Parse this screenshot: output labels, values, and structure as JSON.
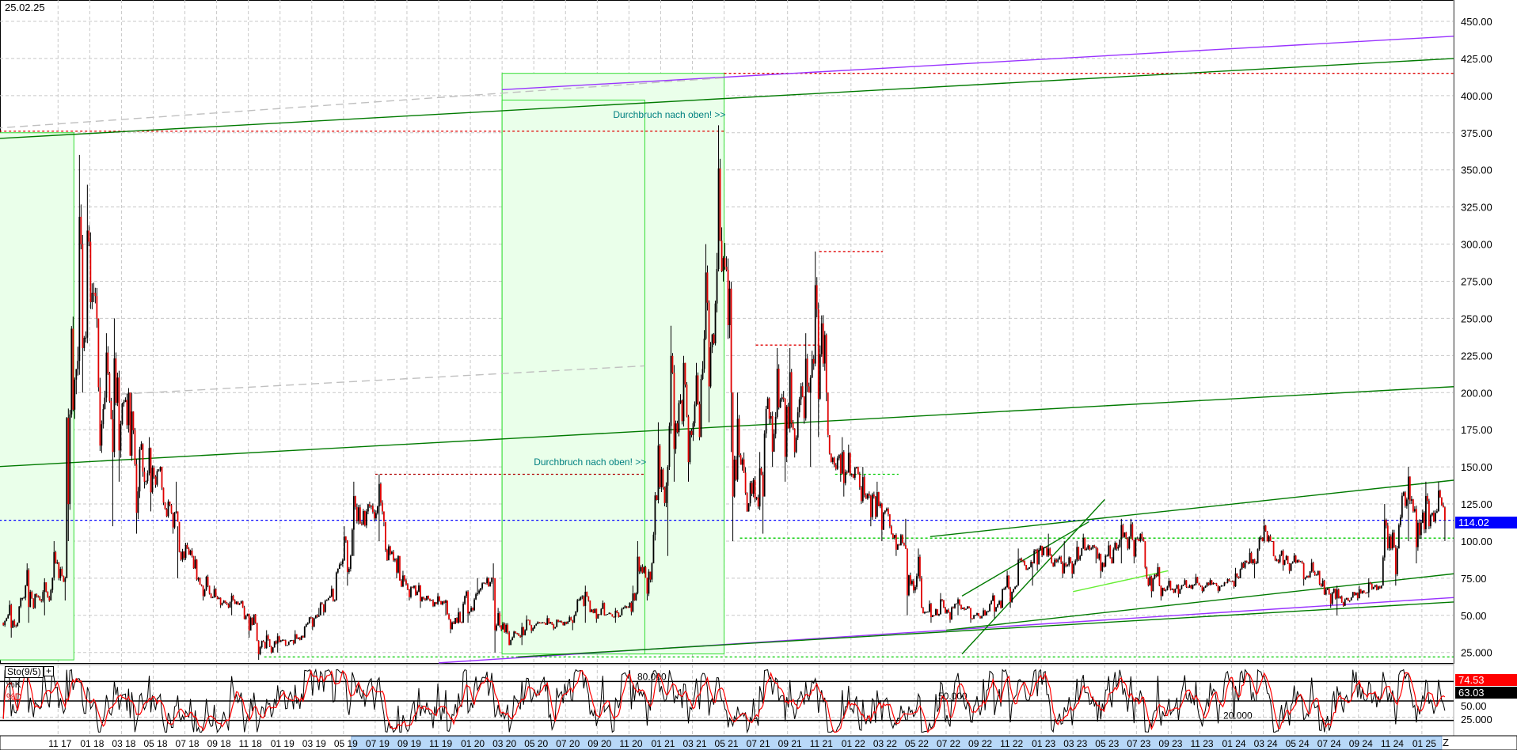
{
  "header": {
    "date": "25.02.25"
  },
  "indicator": {
    "name": "Sto(9/5)",
    "add_label": "+",
    "k_label": "%K",
    "d_label": "%D",
    "k_value": "74.53",
    "d_value": "63.03",
    "k_color": "#ff0000",
    "d_color": "#000000"
  },
  "last_price": {
    "label": "114.02",
    "color": "#0000ff"
  },
  "time_axis": {
    "end_label": "Z"
  },
  "chart_data": [
    {
      "type": "candlestick",
      "title": "",
      "ylim": [
        25,
        450
      ],
      "grid": true,
      "y_ticks": [
        "450.00",
        "425.00",
        "400.00",
        "375.00",
        "350.00",
        "325.00",
        "300.00",
        "275.00",
        "250.00",
        "225.00",
        "200.00",
        "175.00",
        "150.00",
        "125.00",
        "100.00",
        "75.00",
        "50.00",
        "25.000"
      ],
      "x_ticks": [
        "11 17",
        "01 18",
        "03 18",
        "05 18",
        "07 18",
        "09 18",
        "11 18",
        "01 19",
        "03 19",
        "05 19",
        "07 19",
        "09 19",
        "11 19",
        "01 20",
        "03 20",
        "05 20",
        "07 20",
        "09 20",
        "11 20",
        "01 21",
        "03 21",
        "05 21",
        "07 21",
        "09 21",
        "11 21",
        "01 22",
        "03 22",
        "05 22",
        "07 22",
        "09 22",
        "11 22",
        "01 23",
        "03 23",
        "05 23",
        "07 23",
        "09 23",
        "11 23",
        "01 24",
        "03 24",
        "05 24",
        "07 24",
        "09 24",
        "11 24",
        "01 25"
      ],
      "columns": [
        "month",
        "high",
        "low",
        "close"
      ],
      "monthly": [
        [
          "2017-08",
          60,
          35,
          45
        ],
        [
          "2017-09",
          85,
          45,
          55
        ],
        [
          "2017-10",
          75,
          50,
          60
        ],
        [
          "2017-11",
          100,
          60,
          75
        ],
        [
          "2017-12",
          360,
          100,
          300
        ],
        [
          "2018-01",
          340,
          200,
          250
        ],
        [
          "2018-02",
          240,
          110,
          160
        ],
        [
          "2018-03",
          250,
          140,
          200
        ],
        [
          "2018-04",
          200,
          105,
          140
        ],
        [
          "2018-05",
          170,
          120,
          150
        ],
        [
          "2018-06",
          140,
          105,
          120
        ],
        [
          "2018-07",
          110,
          75,
          90
        ],
        [
          "2018-08",
          90,
          60,
          70
        ],
        [
          "2018-09",
          70,
          55,
          60
        ],
        [
          "2018-10",
          65,
          50,
          58
        ],
        [
          "2018-11",
          60,
          35,
          45
        ],
        [
          "2018-12",
          40,
          20,
          25
        ],
        [
          "2019-01",
          38,
          25,
          30
        ],
        [
          "2019-02",
          40,
          30,
          35
        ],
        [
          "2019-03",
          55,
          40,
          50
        ],
        [
          "2019-04",
          70,
          50,
          60
        ],
        [
          "2019-05",
          110,
          70,
          90
        ],
        [
          "2019-06",
          140,
          90,
          120
        ],
        [
          "2019-07",
          145,
          100,
          120
        ],
        [
          "2019-08",
          110,
          75,
          90
        ],
        [
          "2019-09",
          80,
          60,
          70
        ],
        [
          "2019-10",
          72,
          55,
          60
        ],
        [
          "2019-11",
          65,
          50,
          60
        ],
        [
          "2019-12",
          55,
          38,
          45
        ],
        [
          "2020-01",
          75,
          45,
          65
        ],
        [
          "2020-02",
          85,
          60,
          75
        ],
        [
          "2020-03",
          55,
          25,
          30
        ],
        [
          "2020-04",
          45,
          30,
          40
        ],
        [
          "2020-05",
          50,
          38,
          45
        ],
        [
          "2020-06",
          50,
          40,
          47
        ],
        [
          "2020-07",
          50,
          40,
          45
        ],
        [
          "2020-08",
          70,
          45,
          60
        ],
        [
          "2020-09",
          60,
          45,
          50
        ],
        [
          "2020-10",
          55,
          45,
          50
        ],
        [
          "2020-11",
          70,
          50,
          65
        ],
        [
          "2020-12",
          100,
          60,
          85
        ],
        [
          "2021-01",
          180,
          90,
          150
        ],
        [
          "2021-02",
          245,
          140,
          220
        ],
        [
          "2021-03",
          220,
          140,
          170
        ],
        [
          "2021-04",
          300,
          180,
          260
        ],
        [
          "2021-05",
          380,
          160,
          200
        ],
        [
          "2021-06",
          200,
          100,
          120
        ],
        [
          "2021-07",
          160,
          105,
          130
        ],
        [
          "2021-08",
          230,
          150,
          190
        ],
        [
          "2021-09",
          230,
          140,
          160
        ],
        [
          "2021-10",
          240,
          150,
          210
        ],
        [
          "2021-11",
          295,
          170,
          200
        ],
        [
          "2021-12",
          170,
          140,
          160
        ],
        [
          "2022-01",
          165,
          130,
          145
        ],
        [
          "2022-02",
          150,
          110,
          130
        ],
        [
          "2022-03",
          140,
          100,
          110
        ],
        [
          "2022-04",
          115,
          90,
          95
        ],
        [
          "2022-05",
          95,
          50,
          55
        ],
        [
          "2022-06",
          60,
          45,
          50
        ],
        [
          "2022-07",
          65,
          45,
          55
        ],
        [
          "2022-08",
          62,
          50,
          55
        ],
        [
          "2022-09",
          55,
          45,
          50
        ],
        [
          "2022-10",
          65,
          48,
          55
        ],
        [
          "2022-11",
          80,
          55,
          70
        ],
        [
          "2022-12",
          95,
          70,
          85
        ],
        [
          "2023-01",
          105,
          80,
          95
        ],
        [
          "2023-02",
          100,
          75,
          85
        ],
        [
          "2023-03",
          100,
          75,
          90
        ],
        [
          "2023-04",
          105,
          85,
          95
        ],
        [
          "2023-05",
          100,
          75,
          85
        ],
        [
          "2023-06",
          115,
          85,
          95
        ],
        [
          "2023-07",
          115,
          85,
          100
        ],
        [
          "2023-08",
          85,
          62,
          70
        ],
        [
          "2023-09",
          75,
          60,
          68
        ],
        [
          "2023-10",
          75,
          62,
          68
        ],
        [
          "2023-11",
          78,
          65,
          72
        ],
        [
          "2023-12",
          75,
          65,
          70
        ],
        [
          "2024-01",
          82,
          68,
          75
        ],
        [
          "2024-02",
          95,
          75,
          85
        ],
        [
          "2024-03",
          115,
          85,
          100
        ],
        [
          "2024-04",
          100,
          80,
          90
        ],
        [
          "2024-05",
          92,
          78,
          85
        ],
        [
          "2024-06",
          88,
          70,
          80
        ],
        [
          "2024-07",
          75,
          55,
          68
        ],
        [
          "2024-08",
          70,
          50,
          60
        ],
        [
          "2024-09",
          70,
          60,
          65
        ],
        [
          "2024-10",
          75,
          62,
          70
        ],
        [
          "2024-11",
          125,
          70,
          95
        ],
        [
          "2024-12",
          150,
          100,
          120
        ],
        [
          "2025-01",
          140,
          85,
          110
        ],
        [
          "2025-02",
          140,
          100,
          114
        ]
      ],
      "horizontal_lines": [
        {
          "price": 114.02,
          "color": "#0000ff",
          "style": "dotted",
          "from": "2017-07",
          "to": "2025-03"
        },
        {
          "price": 415,
          "color": "#e00000",
          "style": "dotted",
          "from": "2021-05",
          "to": "2025-03"
        },
        {
          "price": 376,
          "color": "#e00000",
          "style": "dotted",
          "from": "2017-07",
          "to": "2021-05"
        },
        {
          "price": 145,
          "color": "#b00000",
          "style": "dotted",
          "from": "2019-07",
          "to": "2020-12"
        },
        {
          "price": 232,
          "color": "#e00000",
          "style": "dotted",
          "from": "2021-07",
          "to": "2021-11"
        },
        {
          "price": 295,
          "color": "#e00000",
          "style": "dotted",
          "from": "2021-11",
          "to": "2022-03"
        },
        {
          "price": 145,
          "color": "#00cc00",
          "style": "dotted",
          "from": "2021-12",
          "to": "2022-04"
        },
        {
          "price": 102,
          "color": "#00cc00",
          "style": "dotted",
          "from": "2021-06",
          "to": "2025-03"
        },
        {
          "price": 22,
          "color": "#00cc00",
          "style": "dotted",
          "from": "2018-12",
          "to": "2025-03"
        }
      ],
      "trend_lines": [
        {
          "color": "#9933ff",
          "from": [
            "2020-03",
            404
          ],
          "to": [
            "2025-03",
            440
          ]
        },
        {
          "color": "#007a00",
          "from": [
            "2017-07",
            371
          ],
          "to": [
            "2025-03",
            425
          ]
        },
        {
          "color": "#c0c0c0",
          "style": "dashed",
          "from": [
            "2017-07",
            378
          ],
          "to": [
            "2021-05",
            412
          ]
        },
        {
          "color": "#007a00",
          "from": [
            "2017-07",
            150
          ],
          "to": [
            "2025-03",
            204
          ]
        },
        {
          "color": "#c0c0c0",
          "style": "dashed",
          "from": [
            "2018-03",
            199
          ],
          "to": [
            "2020-12",
            218
          ]
        },
        {
          "color": "#007a00",
          "from": [
            "2022-06",
            103
          ],
          "to": [
            "2025-03",
            141
          ]
        },
        {
          "color": "#9933ff",
          "from": [
            "2019-11",
            18
          ],
          "to": [
            "2025-03",
            62
          ]
        },
        {
          "color": "#007a00",
          "from": [
            "2020-04",
            22
          ],
          "to": [
            "2025-03",
            59
          ]
        },
        {
          "color": "#007a00",
          "from": [
            "2022-07",
            40
          ],
          "to": [
            "2025-03",
            78
          ]
        },
        {
          "color": "#007a00",
          "from": [
            "2022-08",
            24
          ],
          "to": [
            "2023-05",
            128
          ]
        },
        {
          "color": "#007a00",
          "from": [
            "2022-08",
            63
          ],
          "to": [
            "2023-04",
            113
          ]
        },
        {
          "color": "#66ee33",
          "from": [
            "2023-03",
            66
          ],
          "to": [
            "2023-09",
            80
          ]
        }
      ],
      "zones": [
        {
          "from": "2017-07",
          "to": "2017-12",
          "top": 375,
          "bottom": 20,
          "color": "#eaffea",
          "border": "#33dd33"
        },
        {
          "from": "2020-03",
          "to": "2021-05",
          "top": 415,
          "bottom": 24,
          "color": "#eaffea",
          "border": "#33dd33"
        },
        {
          "from": "2020-03",
          "to": "2020-12",
          "top": 397,
          "bottom": 24,
          "color": "#eaffea",
          "border": "#33dd33"
        }
      ],
      "annotations": [
        {
          "text": "Durchbruch nach oben! >>",
          "date": "2020-10",
          "price": 385,
          "color": "#008080"
        },
        {
          "text": "Durchbruch nach oben! >>",
          "date": "2020-05",
          "price": 151,
          "color": "#008080"
        }
      ]
    },
    {
      "type": "line",
      "title": "Sto(9/5)",
      "ylim": [
        0,
        100
      ],
      "levels": [
        80,
        50,
        20
      ],
      "level_labels": [
        "80.000",
        "50.000",
        "20.000"
      ],
      "y_ticks": [
        "50.00",
        "25.000"
      ],
      "series": [
        {
          "name": "%K",
          "color": "#ff0000",
          "last": 74.53
        },
        {
          "name": "%D",
          "color": "#000000",
          "last": 63.03
        }
      ]
    }
  ]
}
